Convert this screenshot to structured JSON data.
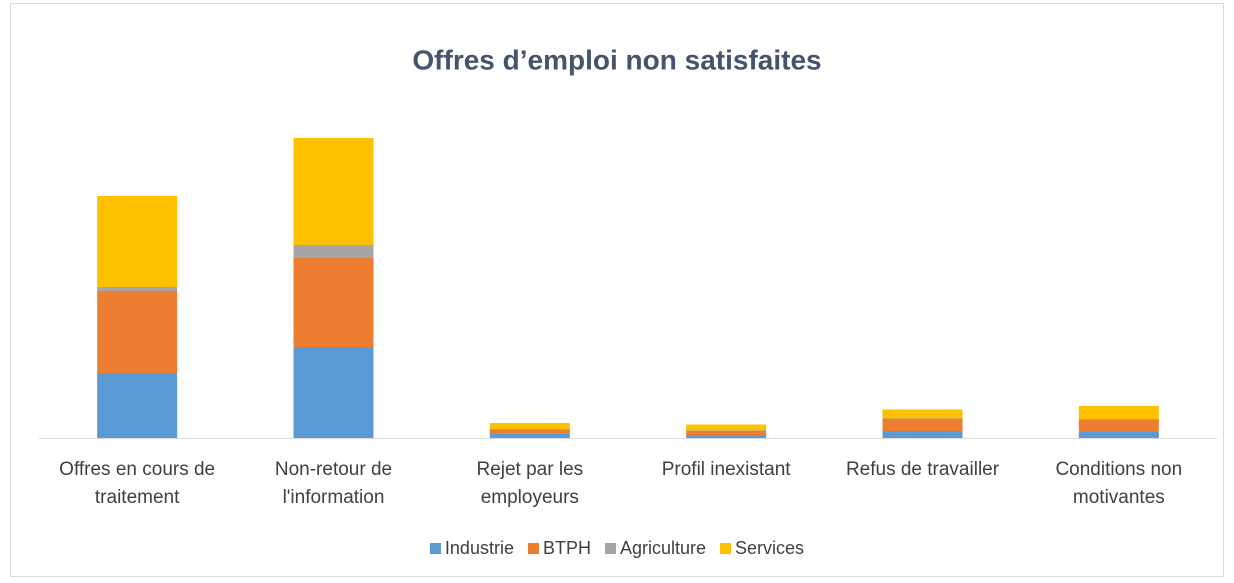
{
  "chart_data": {
    "type": "stacked_bar",
    "title": "Offres d’emploi non satisfaites",
    "categories": [
      "Offres en cours de traitement",
      "Non-retour de l'information",
      "Rejet par les employeurs",
      "Profil inexistant",
      "Refus de travailler",
      "Conditions non motivantes"
    ],
    "series": [
      {
        "name": "Industrie",
        "color": "#5b9bd5",
        "values": [
          65,
          91,
          4,
          3,
          7,
          6
        ]
      },
      {
        "name": "BTPH",
        "color": "#ed7d31",
        "values": [
          82,
          89,
          4,
          4,
          12,
          12
        ]
      },
      {
        "name": "Agriculture",
        "color": "#a5a5a5",
        "values": [
          4,
          13,
          1,
          0.5,
          0.5,
          1
        ]
      },
      {
        "name": "Services",
        "color": "#ffc000",
        "values": [
          91,
          107,
          6,
          6,
          9,
          13
        ]
      }
    ],
    "ylim": [
      0,
      320
    ],
    "legend": "bottom"
  }
}
